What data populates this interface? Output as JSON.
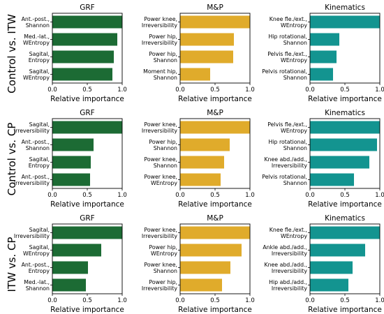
{
  "rows": [
    {
      "label": "Control vs. ITW"
    },
    {
      "label": "Control vs. CP"
    },
    {
      "label": "ITW vs. CP"
    }
  ],
  "columns": [
    {
      "title": "GRF",
      "color": "#1c6b34"
    },
    {
      "title": "M&P",
      "color": "#e0ab2b"
    },
    {
      "title": "Kinematics",
      "color": "#139490"
    }
  ],
  "chart_data": [
    {
      "type": "bar",
      "orientation": "horizontal",
      "title": "GRF",
      "row": "Control vs. ITW",
      "xlabel": "Relative importance",
      "xlim": [
        0,
        1.0
      ],
      "xticks": [
        "0.0",
        "0.5",
        "1.0"
      ],
      "categories": [
        [
          "Ant.-post.,",
          "Shannon"
        ],
        [
          "Med.-lat.,",
          "WEntropy"
        ],
        [
          "Sagital,",
          "Entropy"
        ],
        [
          "Sagital,",
          "WEntropy"
        ]
      ],
      "values": [
        1.0,
        0.93,
        0.88,
        0.86
      ]
    },
    {
      "type": "bar",
      "orientation": "horizontal",
      "title": "M&P",
      "row": "Control vs. ITW",
      "xlabel": "Relative importance",
      "xlim": [
        0,
        1.0
      ],
      "xticks": [
        "0.0",
        "0.5",
        "1.0"
      ],
      "categories": [
        [
          "Power knee,",
          "Irreversibility"
        ],
        [
          "Power hip,",
          "Irreversibility"
        ],
        [
          "Power hip,",
          "Shannon"
        ],
        [
          "Moment hip,",
          "Shannon"
        ]
      ],
      "values": [
        1.0,
        0.77,
        0.76,
        0.43
      ]
    },
    {
      "type": "bar",
      "orientation": "horizontal",
      "title": "Kinematics",
      "row": "Control vs. ITW",
      "xlabel": "Relative importance",
      "xlim": [
        0,
        1.0
      ],
      "xticks": [
        "0.0",
        "0.5",
        "1.0"
      ],
      "categories": [
        [
          "Knee fle./ext.,",
          "WEntropy"
        ],
        [
          "Hip rotational,",
          "Shannon"
        ],
        [
          "Pelvis fle./ext.,",
          "WEntropy"
        ],
        [
          "Pelvis rotational,",
          "Shannon"
        ]
      ],
      "values": [
        1.0,
        0.42,
        0.38,
        0.33
      ]
    },
    {
      "type": "bar",
      "orientation": "horizontal",
      "title": "GRF",
      "row": "Control vs. CP",
      "xlabel": "Relative importance",
      "xlim": [
        0,
        1.0
      ],
      "xticks": [
        "0.0",
        "0.5",
        "1.0"
      ],
      "categories": [
        [
          "Sagital,",
          "Irreversibility"
        ],
        [
          "Ant.-post.,",
          "Shannon"
        ],
        [
          "Sagital,",
          "Entropy"
        ],
        [
          "Ant.-post.,",
          "Irreversibility"
        ]
      ],
      "values": [
        1.0,
        0.59,
        0.55,
        0.54
      ]
    },
    {
      "type": "bar",
      "orientation": "horizontal",
      "title": "M&P",
      "row": "Control vs. CP",
      "xlabel": "Relative importance",
      "xlim": [
        0,
        1.0
      ],
      "xticks": [
        "0.0",
        "0.5",
        "1.0"
      ],
      "categories": [
        [
          "Power knee,",
          "Irreversibility"
        ],
        [
          "Power hip,",
          "Shannon"
        ],
        [
          "Power knee,",
          "Shannon"
        ],
        [
          "Power knee,",
          "WEntropy"
        ]
      ],
      "values": [
        1.0,
        0.71,
        0.63,
        0.58
      ]
    },
    {
      "type": "bar",
      "orientation": "horizontal",
      "title": "Kinematics",
      "row": "Control vs. CP",
      "xlabel": "Relative importance",
      "xlim": [
        0,
        1.0
      ],
      "xticks": [
        "0.0",
        "0.5",
        "1.0"
      ],
      "categories": [
        [
          "Pelvis fle./ext.,",
          "WEntropy"
        ],
        [
          "Hip rotational,",
          "Shannon"
        ],
        [
          "Knee abd./add.,",
          "Irreversibility"
        ],
        [
          "Pelvis rotational,",
          "Shannon"
        ]
      ],
      "values": [
        1.0,
        0.96,
        0.85,
        0.63
      ]
    },
    {
      "type": "bar",
      "orientation": "horizontal",
      "title": "GRF",
      "row": "ITW vs. CP",
      "xlabel": "Relative importance",
      "xlim": [
        0,
        1.0
      ],
      "xticks": [
        "0.0",
        "0.5",
        "1.0"
      ],
      "categories": [
        [
          "Sagital,",
          "Irreversibility"
        ],
        [
          "Sagital,",
          "WEntropy"
        ],
        [
          "Ant.-post.,",
          "Entropy"
        ],
        [
          "Med.-lat.,",
          "Shannon"
        ]
      ],
      "values": [
        1.0,
        0.7,
        0.51,
        0.48
      ]
    },
    {
      "type": "bar",
      "orientation": "horizontal",
      "title": "M&P",
      "row": "ITW vs. CP",
      "xlabel": "Relative importance",
      "xlim": [
        0,
        1.0
      ],
      "xticks": [
        "0.0",
        "0.5",
        "1.0"
      ],
      "categories": [
        [
          "Power knee,",
          "Irreversibility"
        ],
        [
          "Power hip,",
          "WEntropy"
        ],
        [
          "Power knee,",
          "Shannon"
        ],
        [
          "Power hip,",
          "Irreversibility"
        ]
      ],
      "values": [
        1.0,
        0.88,
        0.72,
        0.6
      ]
    },
    {
      "type": "bar",
      "orientation": "horizontal",
      "title": "Kinematics",
      "row": "ITW vs. CP",
      "xlabel": "Relative importance",
      "xlim": [
        0,
        1.0
      ],
      "xticks": [
        "0.0",
        "0.5",
        "1.0"
      ],
      "categories": [
        [
          "Knee fle./ext.,",
          "WEntropy"
        ],
        [
          "Ankle abd./add.,",
          "Irreversibility"
        ],
        [
          "Knee abd./add.,",
          "Irreversibility"
        ],
        [
          "Hip abd./add.,",
          "Irreversibility"
        ]
      ],
      "values": [
        1.0,
        0.79,
        0.61,
        0.55
      ]
    }
  ]
}
